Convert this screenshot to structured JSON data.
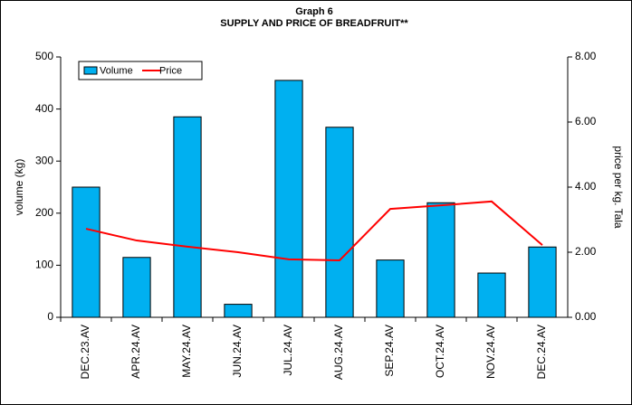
{
  "chart_data": {
    "type": "bar",
    "title": "Graph 6",
    "subtitle": "SUPPLY AND PRICE OF BREADFRUIT**",
    "y_label": "volume (kg)",
    "y2_label": "price per kg. Tala",
    "categories": [
      "DEC.23.AV",
      "APR.24.AV",
      "MAY.24.AV",
      "JUN.24.AV",
      "JUL.24.AV",
      "AUG.24.AV",
      "SEP.24.AV",
      "OCT.24.AV",
      "NOV.24.AV",
      "DEC.24.AV"
    ],
    "series": [
      {
        "name": "Volume",
        "type": "bar",
        "color": "#00b0f0",
        "values": [
          250,
          115,
          385,
          25,
          455,
          365,
          110,
          220,
          85,
          135
        ]
      },
      {
        "name": "Price",
        "type": "line",
        "axis": "y2",
        "color": "#ff0000",
        "values": [
          2.72,
          2.36,
          2.17,
          2.0,
          1.78,
          1.75,
          3.33,
          3.44,
          3.56,
          2.22
        ]
      }
    ],
    "ylim": [
      0,
      500
    ],
    "yticks": [
      0,
      100,
      200,
      300,
      400,
      500
    ],
    "y2lim": [
      0,
      8
    ],
    "y2ticks": [
      {
        "value": 0,
        "label": "0.00"
      },
      {
        "value": 2,
        "label": "2.00"
      },
      {
        "value": 4,
        "label": "4.00"
      },
      {
        "value": 6,
        "label": "6.00"
      },
      {
        "value": 8,
        "label": "8.00"
      }
    ],
    "legend": "top-left"
  }
}
